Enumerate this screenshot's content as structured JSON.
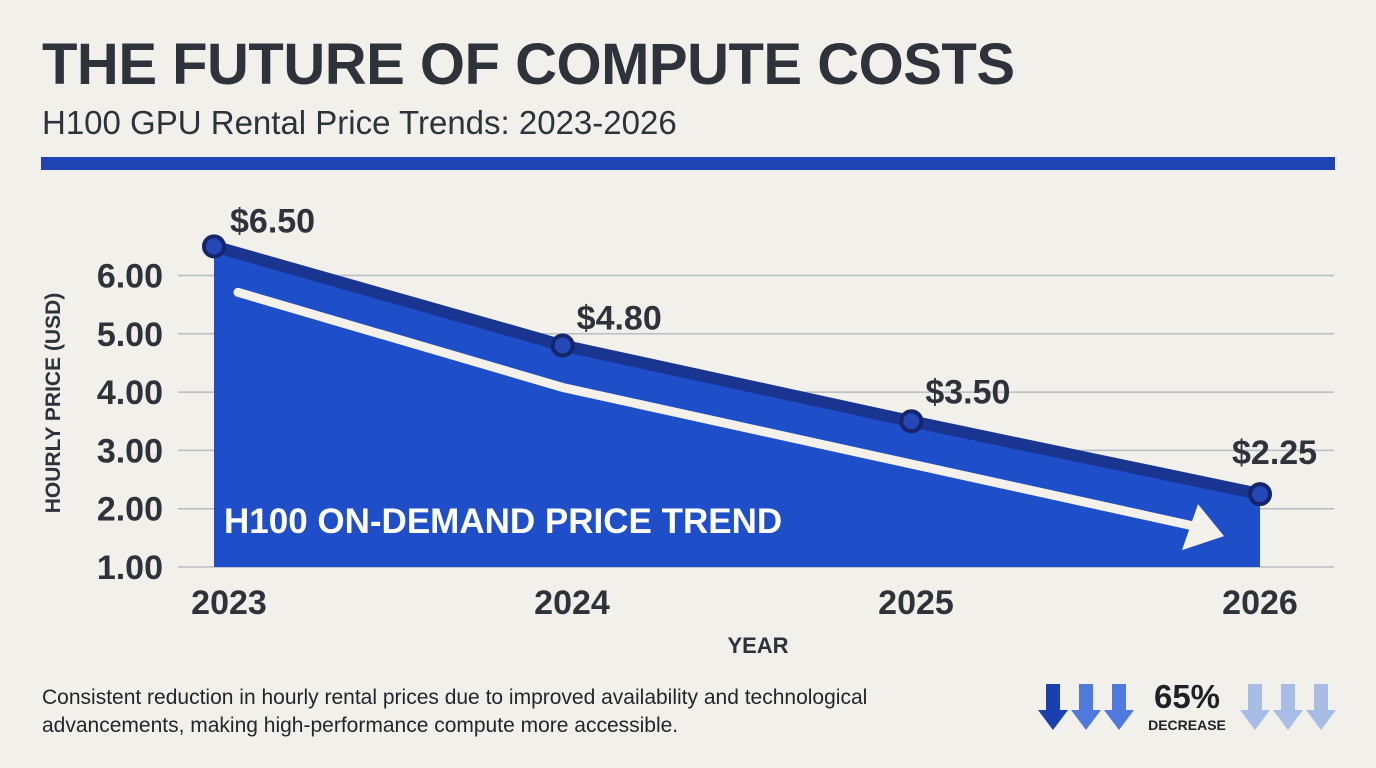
{
  "header": {
    "title": "THE FUTURE OF COMPUTE COSTS",
    "subtitle": "H100 GPU Rental Price Trends: 2023-2026"
  },
  "chart_data": {
    "type": "area",
    "x": [
      "2023",
      "2024",
      "2025",
      "2026"
    ],
    "values": [
      6.5,
      4.8,
      3.5,
      2.25
    ],
    "data_labels": [
      "$6.50",
      "$4.80",
      "$3.50",
      "$2.25"
    ],
    "y_ticks": [
      1.0,
      2.0,
      3.0,
      4.0,
      5.0,
      6.0
    ],
    "y_tick_labels": [
      "1.00",
      "2.00",
      "3.00",
      "4.00",
      "5.00",
      "6.00"
    ],
    "ylim": [
      1,
      7
    ],
    "xlabel": "YEAR",
    "ylabel": "HOURLY PRICE (USD)",
    "area_label": "H100 ON-DEMAND PRICE TREND",
    "grid": true,
    "colors": {
      "area": "#1e4ec8",
      "line": "#1a3590",
      "trend_arrow": "#f4f1ea"
    }
  },
  "footnote": "Consistent reduction in hourly rental prices due to improved availability and technological advancements, making high-performance compute more accessible.",
  "badge": {
    "value": "65%",
    "label": "DECREASE",
    "icon_left": "down-arrows-icon",
    "icon_right": "down-arrows-faded-icon",
    "colors": {
      "dark": "#1a3fae",
      "mid": "#4f79dc",
      "light": "#a7bde6"
    }
  }
}
